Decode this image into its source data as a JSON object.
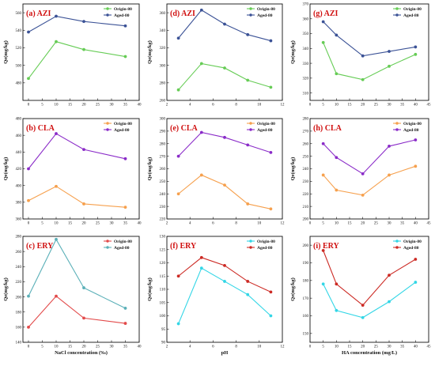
{
  "colors": {
    "origin_green": "#66cc55",
    "aged_navy": "#3b5296",
    "origin_orange": "#f6a04d",
    "aged_purple": "#8a2bc8",
    "origin_red": "#e24a4a",
    "aged_teal": "#5bb0b8",
    "origin_cyan": "#33d6e6",
    "aged_darkred": "#cc2a24",
    "label_red": "#d01010"
  },
  "chart_data": [
    {
      "id": "a",
      "type": "line",
      "label": "(a) AZI",
      "x": [
        0,
        10,
        20,
        35
      ],
      "xlim": [
        -2,
        40
      ],
      "xticks": [
        0,
        5,
        10,
        15,
        20,
        25,
        30,
        35,
        40
      ],
      "ylim": [
        460,
        570
      ],
      "yticks": [
        480,
        500,
        520,
        540,
        560
      ],
      "ylabel": "Qe(mg/kg)",
      "xlabel": "",
      "series": [
        {
          "name": "Origin-80",
          "color_key": "origin_green",
          "values": [
            485,
            527,
            518,
            510
          ]
        },
        {
          "name": "Aged-80",
          "color_key": "aged_navy",
          "values": [
            538,
            556,
            550,
            545
          ]
        }
      ]
    },
    {
      "id": "d",
      "type": "line",
      "label": "(d) AZI",
      "x": [
        3,
        5,
        7,
        9,
        11
      ],
      "xlim": [
        2,
        12
      ],
      "xticks": [
        2,
        4,
        6,
        8,
        10,
        12
      ],
      "ylim": [
        260,
        370
      ],
      "yticks": [
        260,
        280,
        300,
        320,
        340,
        360
      ],
      "ylabel": "Qe(mg/kg)",
      "xlabel": "",
      "series": [
        {
          "name": "Origin-80",
          "color_key": "origin_green",
          "values": [
            272,
            302,
            297,
            283,
            275
          ]
        },
        {
          "name": "Aged-80",
          "color_key": "aged_navy",
          "values": [
            331,
            363,
            347,
            335,
            328
          ]
        }
      ]
    },
    {
      "id": "g",
      "type": "line",
      "label": "(g) AZI",
      "x": [
        5,
        10,
        20,
        30,
        40
      ],
      "xlim": [
        0,
        45
      ],
      "xticks": [
        0,
        5,
        10,
        15,
        20,
        25,
        30,
        35,
        40,
        45
      ],
      "ylim": [
        305,
        370
      ],
      "yticks": [
        310,
        320,
        330,
        340,
        350,
        360,
        370
      ],
      "ylabel": "Qe(mg/kg)",
      "xlabel": "",
      "series": [
        {
          "name": "Origin-80",
          "color_key": "origin_green",
          "values": [
            344,
            323,
            319,
            328,
            336
          ]
        },
        {
          "name": "Aged-80",
          "color_key": "aged_navy",
          "values": [
            358,
            349,
            335,
            338,
            341
          ]
        }
      ]
    },
    {
      "id": "b",
      "type": "line",
      "label": "(b) CLA",
      "x": [
        0,
        10,
        20,
        35
      ],
      "xlim": [
        -2,
        40
      ],
      "xticks": [
        0,
        5,
        10,
        15,
        20,
        25,
        30,
        35,
        40
      ],
      "ylim": [
        360,
        480
      ],
      "yticks": [
        360,
        380,
        400,
        420,
        440,
        460,
        480
      ],
      "ylabel": "Qe(mg/kg)",
      "xlabel": "",
      "series": [
        {
          "name": "Origin-80",
          "color_key": "origin_orange",
          "values": [
            382,
            399,
            378,
            374
          ]
        },
        {
          "name": "Aged-80",
          "color_key": "aged_purple",
          "values": [
            420,
            462,
            443,
            432
          ]
        }
      ]
    },
    {
      "id": "e",
      "type": "line",
      "label": "(e) CLA",
      "x": [
        3,
        5,
        7,
        9,
        11
      ],
      "xlim": [
        2,
        12
      ],
      "xticks": [
        2,
        4,
        6,
        8,
        10,
        12
      ],
      "ylim": [
        220,
        300
      ],
      "yticks": [
        220,
        230,
        240,
        250,
        260,
        270,
        280,
        290,
        300
      ],
      "ylabel": "Qe(mg/kg)",
      "xlabel": "",
      "series": [
        {
          "name": "Origin-80",
          "color_key": "origin_orange",
          "values": [
            240,
            255,
            247,
            232,
            228
          ]
        },
        {
          "name": "Aged-80",
          "color_key": "aged_purple",
          "values": [
            270,
            289,
            285,
            279,
            273
          ]
        }
      ]
    },
    {
      "id": "h",
      "type": "line",
      "label": "(h) CLA",
      "x": [
        5,
        10,
        20,
        30,
        40
      ],
      "xlim": [
        0,
        45
      ],
      "xticks": [
        0,
        5,
        10,
        15,
        20,
        25,
        30,
        35,
        40,
        45
      ],
      "ylim": [
        200,
        280
      ],
      "yticks": [
        200,
        210,
        220,
        230,
        240,
        250,
        260,
        270,
        280
      ],
      "ylabel": "Qe(mg/kg)",
      "xlabel": "",
      "series": [
        {
          "name": "Origin-80",
          "color_key": "origin_orange",
          "values": [
            235,
            223,
            219,
            235,
            242
          ]
        },
        {
          "name": "Aged-80",
          "color_key": "aged_purple",
          "values": [
            260,
            249,
            236,
            258,
            263
          ]
        }
      ]
    },
    {
      "id": "c",
      "type": "line",
      "label": "(c) ERY",
      "x": [
        0,
        10,
        20,
        35
      ],
      "xlim": [
        -2,
        40
      ],
      "xticks": [
        0,
        5,
        10,
        15,
        20,
        25,
        30,
        35,
        40
      ],
      "ylim": [
        140,
        280
      ],
      "yticks": [
        140,
        160,
        180,
        200,
        220,
        240,
        260,
        280
      ],
      "ylabel": "Qe(mg/kg)",
      "xlabel": "NaCl concentration (‰)",
      "series": [
        {
          "name": "Origin-80",
          "color_key": "origin_red",
          "values": [
            160,
            201,
            172,
            165
          ]
        },
        {
          "name": "Aged-80",
          "color_key": "aged_teal",
          "values": [
            201,
            276,
            212,
            185
          ]
        }
      ]
    },
    {
      "id": "f",
      "type": "line",
      "label": "(f) ERY",
      "x": [
        3,
        5,
        7,
        9,
        11
      ],
      "xlim": [
        2,
        12
      ],
      "xticks": [
        2,
        4,
        6,
        8,
        10,
        12
      ],
      "ylim": [
        90,
        130
      ],
      "yticks": [
        90,
        95,
        100,
        105,
        110,
        115,
        120,
        125,
        130
      ],
      "ylabel": "Qe(mg/kg)",
      "xlabel": "pH",
      "series": [
        {
          "name": "Origin-80",
          "color_key": "origin_cyan",
          "values": [
            97,
            118,
            113,
            108,
            100
          ]
        },
        {
          "name": "Aged-80",
          "color_key": "aged_darkred",
          "values": [
            115,
            122,
            119,
            113,
            109
          ]
        }
      ]
    },
    {
      "id": "i",
      "type": "line",
      "label": "(i) ERY",
      "x": [
        5,
        10,
        20,
        30,
        40
      ],
      "xlim": [
        0,
        45
      ],
      "xticks": [
        0,
        5,
        10,
        15,
        20,
        25,
        30,
        35,
        40,
        45
      ],
      "ylim": [
        145,
        205
      ],
      "yticks": [
        150,
        160,
        170,
        180,
        190,
        200
      ],
      "ylabel": "Qe(mg/kg)",
      "xlabel": "HA  concentration (mg/L)",
      "series": [
        {
          "name": "Origin-80",
          "color_key": "origin_cyan",
          "values": [
            178,
            163,
            159,
            168,
            179
          ]
        },
        {
          "name": "Aged-80",
          "color_key": "aged_darkred",
          "values": [
            197,
            178,
            166,
            183,
            192
          ]
        }
      ]
    }
  ]
}
